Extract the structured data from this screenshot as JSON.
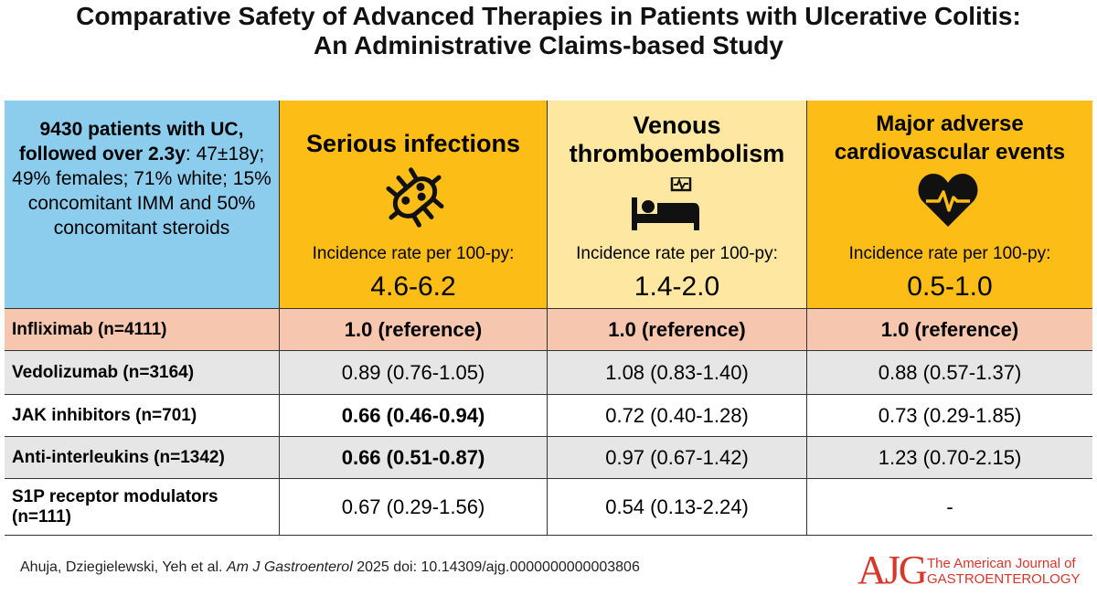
{
  "header": {
    "title": [
      "Comparative Safety of Advanced Therapies in Patients with Ulcerative Colitis:",
      "An Administrative Claims-based Study"
    ]
  },
  "population": {
    "summary": "9430 patients with UC, followed over 2.3y",
    "details": ": 47±18y; 49% females; 71% white; 15% concomitant IMM and 50% concomitant steroids"
  },
  "outcomes": [
    {
      "name": "Serious infections",
      "rate_label": "Incidence rate per 100-py:",
      "rate": "4.6-6.2"
    },
    {
      "name": "Venous thromboembolism",
      "rate_label": "Incidence rate per 100-py:",
      "rate": "1.4-2.0"
    },
    {
      "name": "Major adverse cardiovascular events",
      "rate_label": "Incidence rate per 100-py:",
      "rate": "0.5-1.0"
    }
  ],
  "table": {
    "rows": [
      {
        "therapy": "Infliximab (n=4111)",
        "color": "#f6c6ae",
        "cells": [
          {
            "text": "1.0 (reference)",
            "bold": true
          },
          {
            "text": "1.0 (reference)",
            "bold": true
          },
          {
            "text": "1.0 (reference)",
            "bold": true
          }
        ]
      },
      {
        "therapy": "Vedolizumab (n=3164)",
        "color": "#e6e6e6",
        "cells": [
          {
            "text": "0.89 (0.76-1.05)",
            "bold": false
          },
          {
            "text": "1.08 (0.83-1.40)",
            "bold": false
          },
          {
            "text": "0.88 (0.57-1.37)",
            "bold": false
          }
        ]
      },
      {
        "therapy": "JAK inhibitors (n=701)",
        "color": "#ffffff",
        "cells": [
          {
            "text": "0.66 (0.46-0.94)",
            "bold": true
          },
          {
            "text": "0.72 (0.40-1.28)",
            "bold": false
          },
          {
            "text": "0.73 (0.29-1.85)",
            "bold": false
          }
        ]
      },
      {
        "therapy": "Anti-interleukins (n=1342)",
        "color": "#e6e6e6",
        "cells": [
          {
            "text": "0.66 (0.51-0.87)",
            "bold": true
          },
          {
            "text": "0.97 (0.67-1.42)",
            "bold": false
          },
          {
            "text": "1.23 (0.70-2.15)",
            "bold": false
          }
        ]
      },
      {
        "therapy": "S1P receptor modulators (n=111)",
        "color": "#ffffff",
        "cells": [
          {
            "text": "0.67 (0.29-1.56)",
            "bold": false
          },
          {
            "text": "0.54 (0.13-2.24)",
            "bold": false
          },
          {
            "text": "-",
            "bold": false
          }
        ]
      }
    ]
  },
  "footer": {
    "authors": "Ahuja, Dziegielewski, Yeh  et al.",
    "journal": "Am J Gastroenterol",
    "doi": "2025 doi: 10.14309/ajg.0000000000003806",
    "logo_mark": "AJG",
    "logo_lines": [
      "The American Journal of",
      "GASTROENTEROLOGY"
    ]
  }
}
